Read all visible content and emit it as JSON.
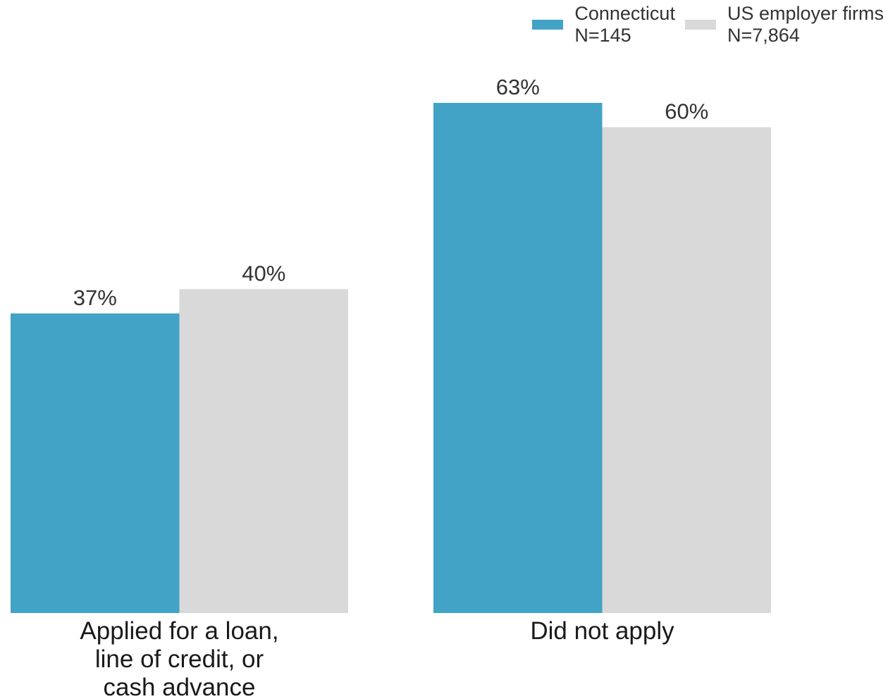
{
  "chart_data": {
    "type": "bar",
    "categories": [
      [
        "Applied for a loan,",
        "line of credit, or",
        "cash advance"
      ],
      [
        "Did not apply"
      ]
    ],
    "series": [
      {
        "name": "Connecticut",
        "sublabel": "N=145",
        "color": "#42a3c7",
        "values": [
          37,
          63
        ]
      },
      {
        "name": "US employer firms",
        "sublabel": "N=7,864",
        "color": "#d9d9d9",
        "values": [
          40,
          60
        ]
      }
    ],
    "value_suffix": "%",
    "ylim": [
      0,
      63
    ],
    "grid": false,
    "legend_position": "top-right"
  }
}
